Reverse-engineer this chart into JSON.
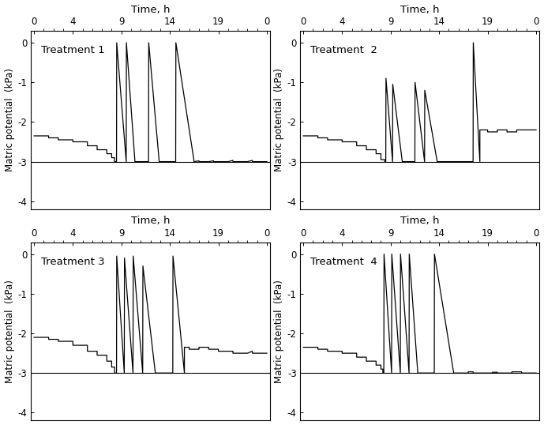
{
  "xlabel": "Time, h",
  "ylabel_left": "Matric potential  (kPa)",
  "ylabel_right": "Matric potential  (kPa)",
  "xtick_labels": [
    "0",
    "4",
    "9",
    "14",
    "19",
    "0"
  ],
  "xtick_positions": [
    0,
    4,
    9,
    14,
    19,
    24
  ],
  "ytick_labels": [
    "0",
    "-1",
    "-2",
    "-3",
    "-4"
  ],
  "ytick_positions": [
    0,
    -1,
    -2,
    -3,
    -4
  ],
  "ylim": [
    -4.2,
    0.3
  ],
  "xlim": [
    -0.3,
    24.3
  ],
  "hline_y": -3,
  "treatments": [
    "Treatment 1",
    "Treatment  2",
    "Treatment 3",
    "Treatment  4"
  ],
  "line_color": "#000000",
  "linewidth": 0.9,
  "bg_color": "#ffffff"
}
